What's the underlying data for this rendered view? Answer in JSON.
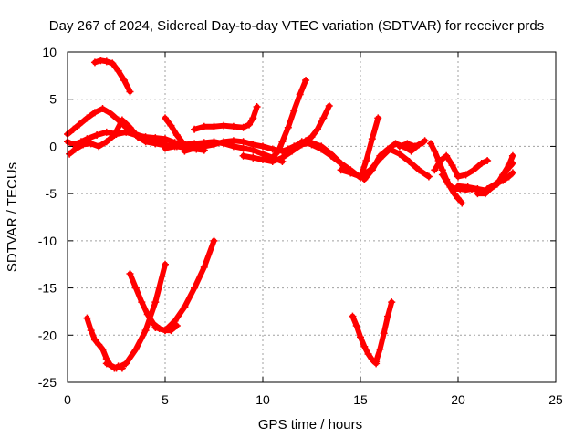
{
  "chart_data": {
    "type": "scatter",
    "title": "Day 267 of 2024, Sidereal Day-to-day VTEC variation (SDTVAR) for receiver prds",
    "xlabel": "GPS time / hours",
    "ylabel": "SDTVAR / TECUs",
    "xlim": [
      0,
      25
    ],
    "ylim": [
      -25,
      10
    ],
    "xticks": [
      "0",
      "5",
      "10",
      "15",
      "20",
      "25"
    ],
    "yticks": [
      "10",
      "5",
      "0",
      "-5",
      "-10",
      "-15",
      "-20",
      "-25"
    ],
    "grid": true,
    "marker": "plus",
    "color": "#ff0000",
    "segments": [
      {
        "x": [
          0.0,
          0.3,
          0.7,
          1.0,
          1.5,
          2.0,
          2.5,
          3.0,
          3.5,
          4.0,
          4.5,
          5.0,
          5.5,
          6.0
        ],
        "y": [
          0.5,
          0.2,
          0.5,
          0.8,
          1.2,
          1.5,
          1.3,
          1.5,
          1.2,
          1.0,
          0.9,
          0.8,
          0.4,
          0.2
        ]
      },
      {
        "x": [
          0.0,
          0.3,
          0.6,
          1.0,
          1.4,
          1.8,
          2.2,
          2.6,
          3.0,
          3.5,
          4.0,
          4.5,
          5.0
        ],
        "y": [
          1.3,
          1.8,
          2.3,
          3.0,
          3.6,
          4.0,
          3.5,
          2.8,
          2.0,
          1.3,
          0.9,
          0.6,
          0.5
        ]
      },
      {
        "x": [
          0.1,
          0.4,
          0.8,
          1.2,
          1.6,
          2.0,
          2.4,
          2.8,
          3.2,
          3.6,
          4.0,
          4.5,
          5.0,
          5.6,
          6.2
        ],
        "y": [
          -0.8,
          -0.3,
          0.2,
          0.3,
          0.0,
          0.5,
          1.2,
          2.8,
          2.0,
          1.0,
          0.5,
          0.3,
          0.1,
          0.0,
          -0.2
        ]
      },
      {
        "x": [
          1.4,
          1.7,
          2.0,
          2.3,
          2.6,
          2.9,
          3.2
        ],
        "y": [
          8.9,
          9.1,
          9.0,
          8.8,
          8.0,
          7.0,
          5.8
        ]
      },
      {
        "x": [
          5.0,
          5.3,
          5.6,
          5.9,
          6.2,
          6.6,
          7.0
        ],
        "y": [
          3.0,
          2.2,
          1.2,
          0.4,
          0.0,
          -0.3,
          -0.4
        ]
      },
      {
        "x": [
          6.5,
          7.0,
          7.5,
          8.0,
          8.5,
          9.0,
          9.3,
          9.5,
          9.7
        ],
        "y": [
          1.8,
          2.1,
          2.1,
          2.2,
          2.1,
          2.0,
          2.3,
          3.0,
          4.2
        ]
      },
      {
        "x": [
          6.0,
          6.5,
          7.0,
          7.5,
          8.0,
          8.5,
          9.0,
          9.5,
          10.0,
          10.5,
          11.0
        ],
        "y": [
          -0.5,
          -0.2,
          0.0,
          0.2,
          0.5,
          0.6,
          0.5,
          0.2,
          0.0,
          -0.3,
          -0.5
        ]
      },
      {
        "x": [
          5.0,
          5.5,
          6.0,
          6.5,
          7.0,
          7.5,
          8.0,
          8.5,
          9.0,
          9.5,
          10.0,
          10.5,
          11.0
        ],
        "y": [
          -0.2,
          0.0,
          0.2,
          0.3,
          0.4,
          0.5,
          0.3,
          0.0,
          -0.2,
          -0.4,
          -0.8,
          -1.2,
          -1.6
        ]
      },
      {
        "x": [
          9.0,
          9.5,
          10.0,
          10.5,
          11.0,
          11.5,
          12.0,
          12.5,
          13.0,
          13.5,
          14.0,
          14.5,
          15.0
        ],
        "y": [
          -1.0,
          -1.2,
          -1.4,
          -1.6,
          -1.2,
          -0.5,
          0.2,
          0.4,
          0.0,
          -0.8,
          -1.8,
          -2.8,
          -3.2
        ]
      },
      {
        "x": [
          10.5,
          10.8,
          11.0,
          11.3,
          11.6,
          11.9,
          12.2
        ],
        "y": [
          -1.2,
          -0.5,
          0.5,
          2.0,
          3.8,
          5.5,
          7.0
        ]
      },
      {
        "x": [
          11.0,
          11.3,
          11.6,
          11.9,
          12.2,
          12.5,
          12.8,
          13.1,
          13.4
        ],
        "y": [
          -0.5,
          -0.3,
          0.0,
          0.3,
          0.6,
          1.0,
          1.8,
          3.0,
          4.3
        ]
      },
      {
        "x": [
          12.0,
          12.5,
          13.0,
          13.5,
          14.0,
          14.5,
          15.0,
          15.3,
          15.6,
          15.9
        ],
        "y": [
          0.5,
          0.2,
          -0.3,
          -1.0,
          -1.8,
          -2.5,
          -3.3,
          -1.5,
          0.8,
          3.0
        ]
      },
      {
        "x": [
          14.0,
          14.5,
          15.0,
          15.5,
          16.0,
          16.5,
          17.0,
          17.5,
          18.0,
          18.5
        ],
        "y": [
          -2.5,
          -2.8,
          -3.2,
          -2.5,
          -1.3,
          -0.3,
          -0.8,
          -1.6,
          -2.5,
          -3.2
        ]
      },
      {
        "x": [
          15.2,
          15.6,
          16.0,
          16.4,
          16.8,
          17.2,
          17.6,
          18.0,
          18.3
        ],
        "y": [
          -3.5,
          -2.5,
          -1.0,
          -0.3,
          0.3,
          0.0,
          -0.5,
          0.2,
          0.6
        ]
      },
      {
        "x": [
          17.0,
          17.4,
          17.8,
          18.2
        ],
        "y": [
          0.0,
          0.3,
          0.0,
          0.4
        ]
      },
      {
        "x": [
          18.6,
          18.8,
          19.0,
          19.2,
          19.4,
          19.6,
          19.8,
          20.0,
          20.2
        ],
        "y": [
          0.3,
          -0.5,
          -1.5,
          -2.5,
          -3.5,
          -4.3,
          -5.0,
          -5.5,
          -6.0
        ]
      },
      {
        "x": [
          18.8,
          19.1,
          19.4,
          19.7,
          20.0,
          20.4,
          20.8,
          21.2,
          21.5
        ],
        "y": [
          -2.5,
          -1.5,
          -1.0,
          -2.0,
          -3.2,
          -3.0,
          -2.5,
          -1.8,
          -1.5
        ]
      },
      {
        "x": [
          19.2,
          19.5,
          19.8,
          20.1,
          20.4,
          20.7,
          21.0
        ],
        "y": [
          -3.0,
          -4.0,
          -4.5,
          -4.5,
          -4.6,
          -4.5,
          -4.6
        ]
      },
      {
        "x": [
          20.0,
          20.5,
          21.0,
          21.5,
          22.0,
          22.3,
          22.6,
          22.8
        ],
        "y": [
          -4.2,
          -4.3,
          -4.5,
          -4.7,
          -4.0,
          -3.0,
          -2.0,
          -1.0
        ]
      },
      {
        "x": [
          21.0,
          21.4,
          21.8,
          22.2,
          22.5,
          22.8
        ],
        "y": [
          -5.0,
          -5.0,
          -4.2,
          -3.5,
          -2.5,
          -1.8
        ]
      },
      {
        "x": [
          21.5,
          21.9,
          22.3,
          22.6,
          22.8
        ],
        "y": [
          -4.5,
          -4.0,
          -3.6,
          -3.2,
          -2.8
        ]
      },
      {
        "x": [
          1.0,
          1.2,
          1.4,
          1.6,
          1.8,
          2.0,
          2.2,
          2.4,
          2.6,
          2.8
        ],
        "y": [
          -18.2,
          -19.5,
          -20.5,
          -21.0,
          -21.5,
          -22.5,
          -23.2,
          -23.5,
          -23.3,
          -23.5
        ]
      },
      {
        "x": [
          2.0,
          2.5,
          3.0,
          3.5,
          4.0,
          4.5,
          5.0
        ],
        "y": [
          -23.0,
          -23.5,
          -23.0,
          -21.5,
          -19.5,
          -16.5,
          -12.5
        ]
      },
      {
        "x": [
          3.2,
          3.5,
          3.8,
          4.1,
          4.4,
          4.7,
          5.0,
          5.3,
          5.6
        ],
        "y": [
          -13.5,
          -15.0,
          -16.5,
          -17.8,
          -18.8,
          -19.3,
          -19.5,
          -19.5,
          -19.0
        ]
      },
      {
        "x": [
          4.5,
          5.0,
          5.5,
          6.0,
          6.5,
          7.0,
          7.5
        ],
        "y": [
          -19.2,
          -19.5,
          -18.5,
          -17.0,
          -15.0,
          -12.8,
          -10.0
        ]
      },
      {
        "x": [
          14.6,
          14.8,
          15.0,
          15.2,
          15.4,
          15.6,
          15.8
        ],
        "y": [
          -18.0,
          -19.0,
          -20.2,
          -21.2,
          -22.0,
          -22.6,
          -23.0
        ]
      },
      {
        "x": [
          15.8,
          16.0,
          16.2,
          16.4,
          16.6
        ],
        "y": [
          -22.8,
          -21.5,
          -19.8,
          -18.0,
          -16.5
        ]
      }
    ]
  }
}
